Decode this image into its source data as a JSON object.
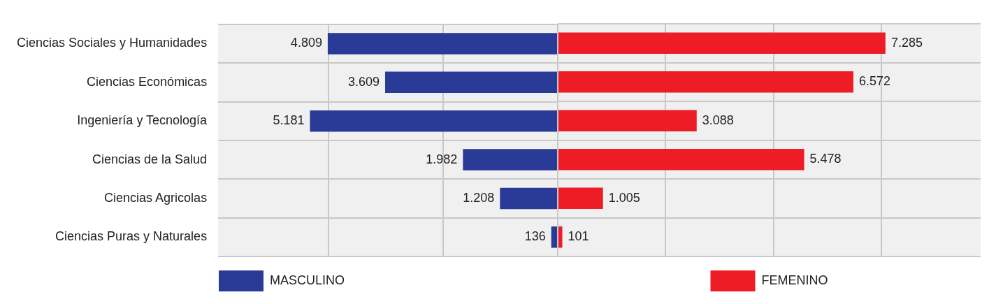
{
  "chart_data": [
    {
      "type": "bar",
      "orientation": "horizontal",
      "categories": [
        "Ciencias Sociales y Humanidades",
        "Ciencias Económicas",
        "Ingeniería y Tecnología",
        "Ciencias de la Salud",
        "Ciencias Agricolas",
        "Ciencias Puras y Naturales"
      ],
      "series": [
        {
          "name": "MASCULINO",
          "color": "#2a3a97",
          "values": [
            4809,
            3609,
            5181,
            1982,
            1208,
            136
          ],
          "value_labels": [
            "4.809",
            "3.609",
            "5.181",
            "1.982",
            "1.208",
            "136"
          ]
        }
      ],
      "xlim": [
        7100,
        0
      ],
      "xticks": [
        {
          "value": 4800,
          "label": null
        },
        {
          "value": 2400,
          "label": null
        },
        {
          "value": 0,
          "label": null
        }
      ],
      "tick_labels": "y",
      "grid": true,
      "legend": "bottom"
    },
    {
      "type": "bar",
      "orientation": "horizontal",
      "categories": [
        null,
        null,
        null,
        null,
        null,
        null
      ],
      "series": [
        {
          "name": "FEMENINO",
          "color": "#ee1c25",
          "values": [
            7285,
            6572,
            3088,
            5478,
            1005,
            101
          ],
          "value_labels": [
            "7.285",
            "6.572",
            "3.088",
            "5.478",
            "1.005",
            "101"
          ]
        }
      ],
      "xlim": [
        0,
        9400
      ],
      "xticks": [
        {
          "value": 0,
          "label": null
        },
        {
          "value": 2400,
          "label": null
        },
        {
          "value": 4800,
          "label": null
        },
        {
          "value": 7200,
          "label": null
        }
      ],
      "tick_labels": false,
      "grid": true,
      "legend": "bottom"
    }
  ]
}
